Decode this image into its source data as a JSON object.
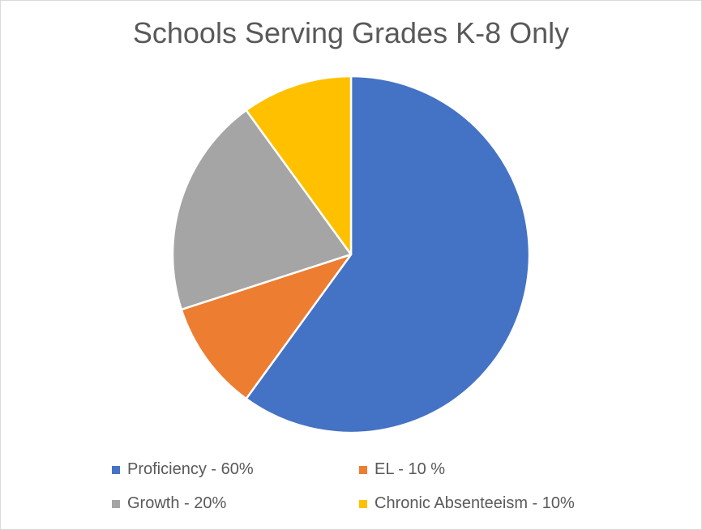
{
  "chart_data": {
    "type": "pie",
    "title": "Schools Serving Grades K-8 Only",
    "categories": [
      "Proficiency",
      "EL",
      "Growth",
      "Chronic Absenteeism"
    ],
    "values": [
      60,
      10,
      20,
      10
    ],
    "colors": [
      "#4472c4",
      "#ed7d31",
      "#a5a5a5",
      "#ffc000"
    ],
    "legend_labels": [
      "Proficiency - 60%",
      "EL - 10 %",
      "Growth - 20%",
      "Chronic Absenteeism - 10%"
    ],
    "legend_position": "bottom",
    "start_angle": "12 o'clock",
    "direction": "clockwise"
  }
}
